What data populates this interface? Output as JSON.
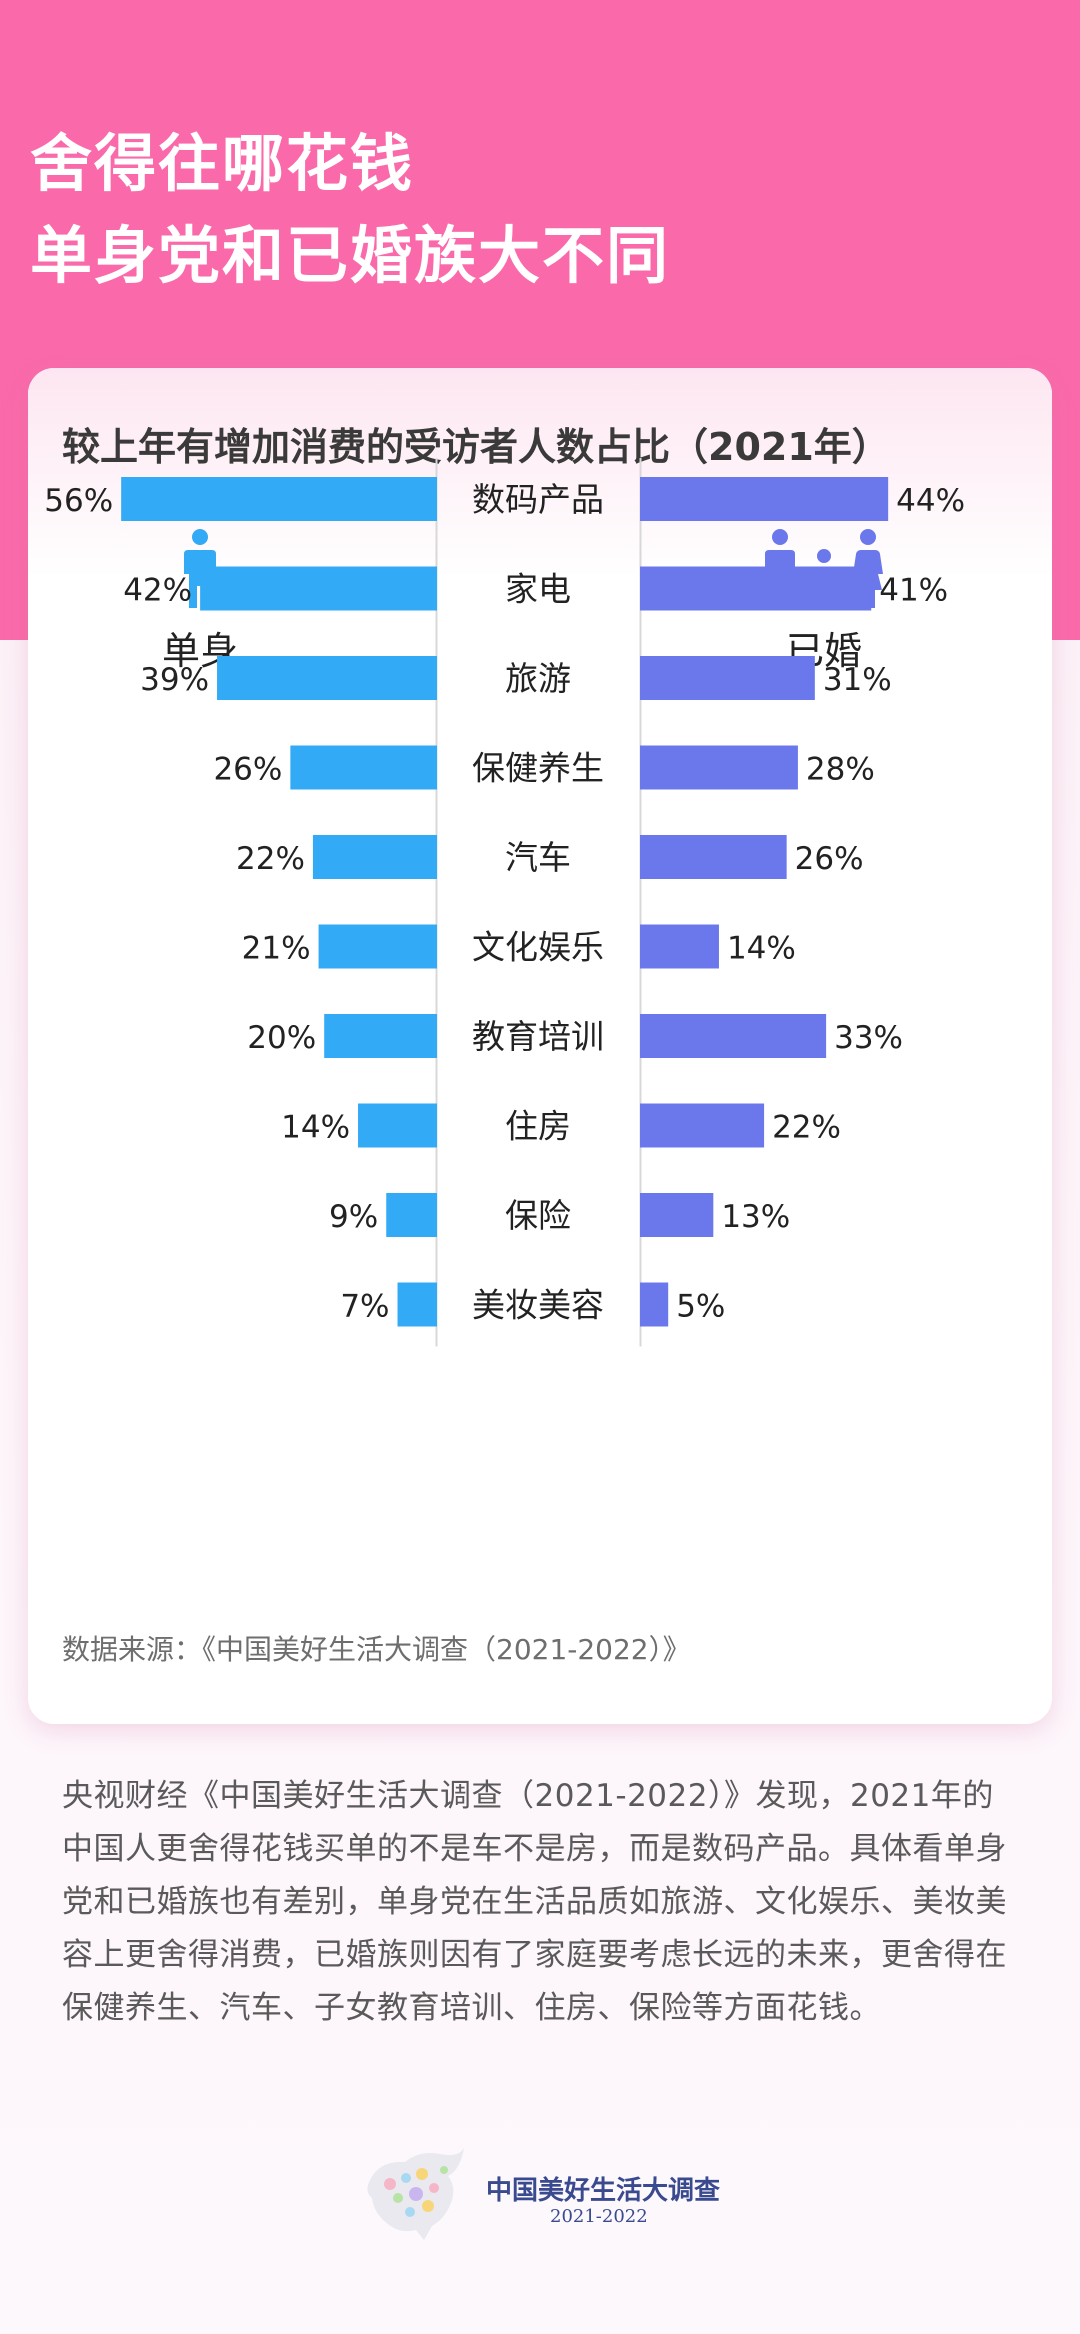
{
  "header": {
    "line1": "舍得往哪花钱",
    "line2": "单身党和已婚族大不同"
  },
  "colors": {
    "pink": "#fa6aaa",
    "single": "#33aaf5",
    "married": "#6b78ec"
  },
  "icons": {
    "single": "single-person-icon",
    "married": "family-icon",
    "logo": "survey-logo-icon"
  },
  "chart_data": {
    "type": "bar",
    "title": "较上年有增加消费的受访者人数占比（2021年）",
    "categories": [
      "数码产品",
      "家电",
      "旅游",
      "保健养生",
      "汽车",
      "文化娱乐",
      "教育培训",
      "住房",
      "保险",
      "美妆美容"
    ],
    "series": [
      {
        "name": "单身",
        "values": [
          56,
          42,
          39,
          26,
          22,
          21,
          20,
          14,
          9,
          7
        ]
      },
      {
        "name": "已婚",
        "values": [
          44,
          41,
          31,
          28,
          26,
          14,
          33,
          22,
          13,
          5
        ]
      }
    ],
    "value_suffix": "%",
    "ylim": [
      0,
      100
    ],
    "grid": false,
    "legend": "top"
  },
  "source": "数据来源：《中国美好生活大调查（2021-2022）》",
  "description": "央视财经《中国美好生活大调查（2021-2022）》发现，2021年的中国人更舍得花钱买单的不是车不是房，而是数码产品。具体看单身党和已婚族也有差别，单身党在生活品质如旅游、文化娱乐、美妆美容上更舍得消费，已婚族则因有了家庭要考虑长远的未来，更舍得在保健养生、汽车、子女教育培训、住房、保险等方面花钱。",
  "logo": {
    "name": "中国美好生活大调查",
    "years": "2021-2022"
  }
}
